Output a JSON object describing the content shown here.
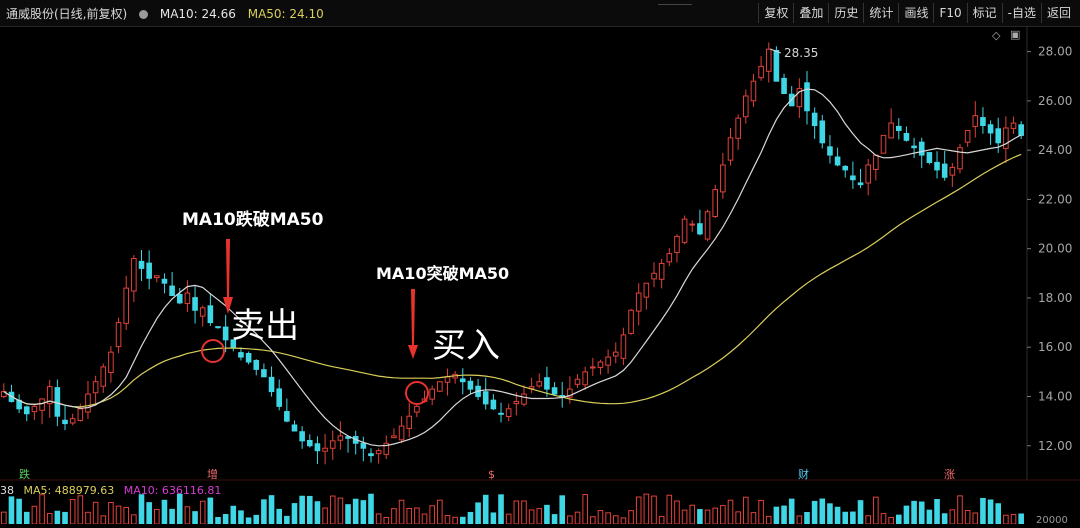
{
  "header": {
    "stock_name": "通威股份(日线,前复权)",
    "ma10_label": "MA10: 24.66",
    "ma50_label": "MA50: 24.10"
  },
  "menu": [
    "复权",
    "叠加",
    "历史",
    "统计",
    "画线",
    "F10",
    "标记",
    "-自选",
    "返回"
  ],
  "annotations": {
    "sell_text": "MA10跌破MA50",
    "sell_action": "卖出",
    "buy_text": "MA10突破MA50",
    "buy_action": "买入",
    "high_label": "28.35"
  },
  "markers": [
    "跌",
    "增",
    "$",
    "财",
    "涨"
  ],
  "volume_legend": {
    "prefix": "38",
    "ma5": "MA5: 488979.63",
    "ma10": "MA10: 636116.81",
    "axis_label": "20000"
  },
  "colors": {
    "up": "#e0413a",
    "down": "#3fd7e6",
    "ma10": "#d9d9d9",
    "ma50": "#d9cf5a",
    "ma5_legend": "#d9cf5a",
    "ma10_legend": "#d63bd6",
    "annotation_red": "#e8332d"
  },
  "chart_data": {
    "type": "candlestick",
    "y_ticks": [
      "28.00",
      "26.00",
      "24.00",
      "22.00",
      "20.00",
      "18.00",
      "16.00",
      "14.00",
      "12.00"
    ],
    "y_range": [
      11.3,
      29.0
    ],
    "closes": [
      14.2,
      13.8,
      13.5,
      13.3,
      13.6,
      13.9,
      14.4,
      13.2,
      12.9,
      13.1,
      13.5,
      14.1,
      14.6,
      15.2,
      15.8,
      17.0,
      18.4,
      19.6,
      19.2,
      18.8,
      18.9,
      18.6,
      18.1,
      17.8,
      18.2,
      17.5,
      17.6,
      17.0,
      16.8,
      16.3,
      16.0,
      15.6,
      15.4,
      15.1,
      14.8,
      14.2,
      13.6,
      13.0,
      12.6,
      12.2,
      12.0,
      11.8,
      11.9,
      12.2,
      12.4,
      12.3,
      12.1,
      11.9,
      11.6,
      11.8,
      12.1,
      12.4,
      12.8,
      13.2,
      13.6,
      13.9,
      14.3,
      14.6,
      14.8,
      14.9,
      14.6,
      14.3,
      14.0,
      13.7,
      13.5,
      13.3,
      13.5,
      13.8,
      14.1,
      14.4,
      14.6,
      14.3,
      14.1,
      14.0,
      14.3,
      14.7,
      15.0,
      15.2,
      15.4,
      15.6,
      15.8,
      16.5,
      17.5,
      18.2,
      18.6,
      19.0,
      19.4,
      19.8,
      20.5,
      21.2,
      21.0,
      20.6,
      21.5,
      22.4,
      23.4,
      24.5,
      25.3,
      26.2,
      26.8,
      27.4,
      28.1,
      26.8,
      26.3,
      25.8,
      26.5,
      25.6,
      25.0,
      24.3,
      23.8,
      23.4,
      23.2,
      22.8,
      22.6,
      23.4,
      23.8,
      24.6,
      25.1,
      24.8,
      24.4,
      24.1,
      23.8,
      23.5,
      23.2,
      22.9,
      23.3,
      24.1,
      24.8,
      25.4,
      25.0,
      24.7,
      24.3,
      24.9,
      25.1,
      24.6
    ]
  }
}
